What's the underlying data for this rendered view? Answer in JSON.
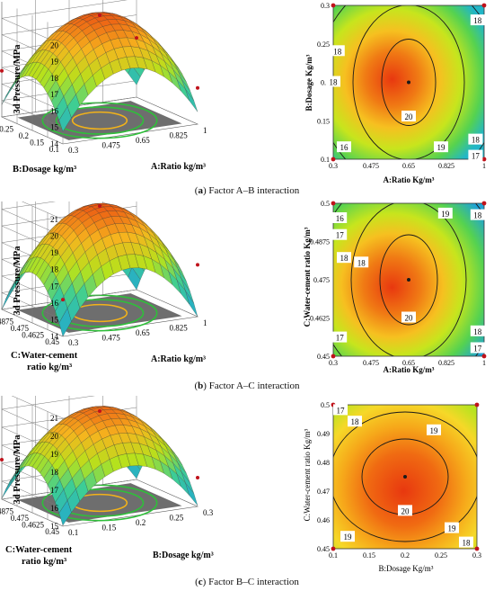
{
  "captions": [
    {
      "letter": "a",
      "text": "Factor A–B interaction"
    },
    {
      "letter": "b",
      "text": "Factor A–C interaction"
    },
    {
      "letter": "c",
      "text": "Factor B–C interaction"
    }
  ],
  "colors": {
    "low": "#1fa3d6",
    "mid": "#b6e21c",
    "high": "#e8380f",
    "floor": "#6e6e6e",
    "contour_ring": "#f2b21a",
    "point": "#c0121b"
  },
  "chart_data": [
    {
      "id": "ab-surface",
      "type": "surface3d",
      "zlabel": "3d Pressure/MPa",
      "xlabel": "A:Ratio kg/m³",
      "ylabel": "B:Dosage kg/m³",
      "zticks": [
        "14",
        "15",
        "16",
        "17",
        "18",
        "19",
        "20"
      ],
      "xticks": [
        "0.3",
        "0.475",
        "0.65",
        "0.825",
        "1"
      ],
      "yticks": [
        "0.3",
        "0.25",
        "0.2",
        "0.15",
        "0.1"
      ],
      "zlim": [
        14,
        21
      ],
      "peak": 20.5,
      "design_points": [
        [
          0.65,
          0.2,
          20.4
        ],
        [
          0.3,
          0.3,
          16.8
        ],
        [
          1,
          0.3,
          17.9
        ],
        [
          1,
          0.1,
          16.7
        ],
        [
          0.3,
          0.1,
          16.1
        ]
      ]
    },
    {
      "id": "ab-contour",
      "type": "contour",
      "xlabel": "A:Ratio Kg/m³",
      "ylabel": "B:Dosage Kg/m³",
      "xticks": [
        "0.3",
        "0.475",
        "0.65",
        "0.825",
        "1"
      ],
      "yticks": [
        "0.1",
        "0.15",
        "0.2",
        "0.25",
        "0.3"
      ],
      "xlim": [
        0.3,
        1
      ],
      "ylim": [
        0.1,
        0.3
      ],
      "center": [
        0.65,
        0.2
      ],
      "contour_labels": [
        "20",
        "19",
        "18",
        "18",
        "18",
        "17",
        "16"
      ],
      "level_labels": [
        {
          "text": "18",
          "x": 0.3,
          "y": 0.2
        },
        {
          "text": "18",
          "x": 0.97,
          "y": 0.28
        },
        {
          "text": "16",
          "x": 0.35,
          "y": 0.115
        },
        {
          "text": "20",
          "x": 0.65,
          "y": 0.155
        },
        {
          "text": "19",
          "x": 0.8,
          "y": 0.115
        },
        {
          "text": "18",
          "x": 0.96,
          "y": 0.125
        },
        {
          "text": "17",
          "x": 0.96,
          "y": 0.104
        },
        {
          "text": "18",
          "x": 0.32,
          "y": 0.24
        }
      ]
    },
    {
      "id": "ac-surface",
      "type": "surface3d",
      "zlabel": "3d Pressure/MPa",
      "xlabel": "A:Ratio kg/m³",
      "ylabel": "C:Water-cement ratio kg/m³",
      "zticks": [
        "14",
        "15",
        "16",
        "17",
        "18",
        "19",
        "20",
        "21"
      ],
      "xticks": [
        "0.3",
        "0.475",
        "0.65",
        "0.825",
        "1"
      ],
      "yticks": [
        "0.5",
        "0.4875",
        "0.475",
        "0.4625",
        "0.45"
      ],
      "zlim": [
        14,
        21
      ],
      "peak": 20.5
    },
    {
      "id": "ac-contour",
      "type": "contour",
      "xlabel": "A:Ratio Kg/m³",
      "ylabel": "C:Water-cement ratio Kg/m³",
      "xticks": [
        "0.3",
        "0.475",
        "0.65",
        "0.825",
        "1"
      ],
      "yticks": [
        "0.45",
        "0.4625",
        "0.475",
        "0.4875",
        "0.5"
      ],
      "xlim": [
        0.3,
        1
      ],
      "ylim": [
        0.45,
        0.5
      ],
      "center": [
        0.65,
        0.475
      ],
      "level_labels": [
        {
          "text": "16",
          "x": 0.33,
          "y": 0.495
        },
        {
          "text": "17",
          "x": 0.33,
          "y": 0.4895
        },
        {
          "text": "18",
          "x": 0.43,
          "y": 0.4805
        },
        {
          "text": "17",
          "x": 0.33,
          "y": 0.456
        },
        {
          "text": "19",
          "x": 0.82,
          "y": 0.4965
        },
        {
          "text": "18",
          "x": 0.97,
          "y": 0.496
        },
        {
          "text": "18",
          "x": 0.97,
          "y": 0.458
        },
        {
          "text": "17",
          "x": 0.97,
          "y": 0.4525
        },
        {
          "text": "20",
          "x": 0.65,
          "y": 0.4625
        },
        {
          "text": "18",
          "x": 0.35,
          "y": 0.482
        }
      ]
    },
    {
      "id": "bc-surface",
      "type": "surface3d",
      "zlabel": "3d Pressure/MPa",
      "xlabel": "B:Dosage kg/m³",
      "ylabel": "C:Water-cement ratio kg/m³",
      "zticks": [
        "15",
        "16",
        "17",
        "18",
        "19",
        "20",
        "21"
      ],
      "xticks": [
        "0.1",
        "0.15",
        "0.2",
        "0.25",
        "0.3"
      ],
      "yticks": [
        "0.5",
        "0.4875",
        "0.475",
        "0.4625",
        "0.45"
      ],
      "zlim": [
        15,
        21
      ],
      "peak": 20.3
    },
    {
      "id": "bc-contour",
      "type": "contour",
      "xlabel": "B:Dosage Kg/m³",
      "ylabel": "C:Water-cement ratio Kg/m³",
      "xticks": [
        "0.1",
        "0.15",
        "0.2",
        "0.25",
        "0.3"
      ],
      "yticks": [
        "0.45",
        "0.46",
        "0.47",
        "0.48",
        "0.49",
        "0.5"
      ],
      "xlim": [
        0.1,
        0.3
      ],
      "ylim": [
        0.45,
        0.5
      ],
      "center": [
        0.2,
        0.475
      ],
      "level_labels": [
        {
          "text": "17",
          "x": 0.11,
          "y": 0.498
        },
        {
          "text": "18",
          "x": 0.13,
          "y": 0.494
        },
        {
          "text": "19",
          "x": 0.24,
          "y": 0.491
        },
        {
          "text": "20",
          "x": 0.2,
          "y": 0.463
        },
        {
          "text": "19",
          "x": 0.12,
          "y": 0.454
        },
        {
          "text": "19",
          "x": 0.265,
          "y": 0.457
        },
        {
          "text": "18",
          "x": 0.285,
          "y": 0.452
        }
      ]
    }
  ]
}
